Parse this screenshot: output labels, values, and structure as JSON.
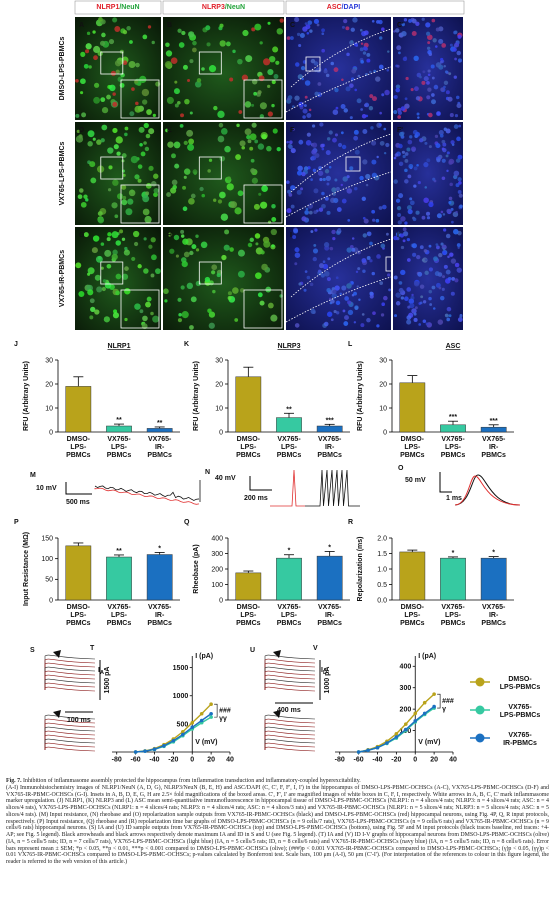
{
  "figure": {
    "columns": [
      [
        "NLRP1",
        "/NeuN"
      ],
      [
        "NLRP3",
        "/NeuN"
      ],
      [
        "ASC",
        "/DAPI"
      ]
    ],
    "rows": [
      "DMSO-LPS-PBMCs",
      "VX765-LPS-PBMCs",
      "VX765-IR-PBMCs"
    ],
    "panel_labels": [
      [
        "A",
        "B",
        "C",
        "C'"
      ],
      [
        "D",
        "E",
        "F",
        "F'"
      ],
      [
        "G",
        "H",
        "I",
        "I'"
      ]
    ]
  },
  "chart_data": [
    {
      "type": "bar",
      "panel": "J",
      "title": "NLRP1",
      "ylabel": "RFU (Arbitrary Units)",
      "categories": [
        "DMSO-LPS-PBMCs",
        "VX765-LPS-PBMCs",
        "VX765-IR-PBMCs"
      ],
      "values": [
        19,
        2.5,
        1.5
      ],
      "errors": [
        4,
        0.8,
        0.6
      ],
      "annotations": [
        null,
        "**",
        "**"
      ],
      "colors": [
        "#b9a31b",
        "#36c9a1",
        "#1b70c1"
      ],
      "ylim": [
        0,
        30
      ],
      "yticks": [
        0,
        10,
        20,
        30
      ]
    },
    {
      "type": "bar",
      "panel": "K",
      "title": "NLRP3",
      "ylabel": "RFU (Arbitrary Units)",
      "categories": [
        "DMSO-LPS-PBMCs",
        "VX765-LPS-PBMCs",
        "VX765-IR-PBMCs"
      ],
      "values": [
        23,
        6,
        2.5
      ],
      "errors": [
        4,
        1.8,
        0.7
      ],
      "annotations": [
        null,
        "**",
        "***"
      ],
      "colors": [
        "#b9a31b",
        "#36c9a1",
        "#1b70c1"
      ],
      "ylim": [
        0,
        30
      ],
      "yticks": [
        0,
        10,
        20,
        30
      ]
    },
    {
      "type": "bar",
      "panel": "L",
      "title": "ASC",
      "ylabel": "RFU (Arbitrary Units)",
      "categories": [
        "DMSO-LPS-PBMCs",
        "VX765-LPS-PBMCs",
        "VX765-IR-PBMCs"
      ],
      "values": [
        20.5,
        3,
        2
      ],
      "errors": [
        3,
        1.5,
        1
      ],
      "annotations": [
        null,
        "***",
        "***"
      ],
      "colors": [
        "#b9a31b",
        "#36c9a1",
        "#1b70c1"
      ],
      "ylim": [
        0,
        30
      ],
      "yticks": [
        0,
        10,
        20,
        30
      ]
    },
    {
      "type": "bar",
      "panel": "P",
      "ylabel": "Input Resistance (MΩ)",
      "categories": [
        "DMSO-LPS-PBMCs",
        "VX765-LPS-PBMCs",
        "VX765-IR-PBMCs"
      ],
      "values": [
        131,
        104,
        110
      ],
      "errors": [
        7,
        5,
        5
      ],
      "annotations": [
        null,
        "**",
        "*"
      ],
      "colors": [
        "#b9a31b",
        "#36c9a1",
        "#1b70c1"
      ],
      "ylim": [
        0,
        150
      ],
      "yticks": [
        0,
        50,
        100,
        150
      ]
    },
    {
      "type": "bar",
      "panel": "Q",
      "ylabel": "Rheobase (pA)",
      "categories": [
        "DMSO-LPS-PBMCs",
        "VX765-LPS-PBMCs",
        "VX765-IR-PBMCs"
      ],
      "values": [
        175,
        270,
        283
      ],
      "errors": [
        12,
        22,
        30
      ],
      "annotations": [
        null,
        "*",
        "*"
      ],
      "colors": [
        "#b9a31b",
        "#36c9a1",
        "#1b70c1"
      ],
      "ylim": [
        0,
        400
      ],
      "yticks": [
        0,
        100,
        200,
        300,
        400
      ]
    },
    {
      "type": "bar",
      "panel": "R",
      "ylabel": "Repolarization (ms)",
      "categories": [
        "DMSO-LPS-PBMCs",
        "VX765-LPS-PBMCs",
        "VX765-IR-PBMCs"
      ],
      "values": [
        1.55,
        1.35,
        1.35
      ],
      "errors": [
        0.06,
        0.04,
        0.05
      ],
      "annotations": [
        null,
        "*",
        "*"
      ],
      "colors": [
        "#b9a31b",
        "#36c9a1",
        "#1b70c1"
      ],
      "ylim": [
        0,
        2
      ],
      "yticks": [
        {
          "value": 0,
          "label": "0.0"
        },
        {
          "value": 0.5,
          "label": "0.5"
        },
        {
          "value": 1,
          "label": "1.0"
        },
        {
          "value": 1.5,
          "label": "1.5"
        },
        {
          "value": 2,
          "label": "2.0"
        }
      ]
    },
    {
      "type": "line",
      "panel": "T",
      "current": [
        "I",
        "A"
      ],
      "xlabel": "V (mV)",
      "ylabel": "I (pA)",
      "x": [
        -60,
        -50,
        -40,
        -30,
        -20,
        -10,
        0,
        10,
        20
      ],
      "series": [
        {
          "name": "DMSO-LPS-PBMCs",
          "color": "#b9a31b",
          "values": [
            0,
            20,
            60,
            130,
            230,
            360,
            520,
            680,
            850
          ]
        },
        {
          "name": "VX765-LPS-PBMCs",
          "color": "#36c9a1",
          "values": [
            0,
            15,
            45,
            100,
            180,
            290,
            410,
            520,
            620
          ]
        },
        {
          "name": "VX765-IR-PBMCs",
          "color": "#1b70c1",
          "values": [
            0,
            15,
            50,
            110,
            200,
            310,
            440,
            560,
            680
          ]
        }
      ],
      "annotations": [
        "###",
        "γγ"
      ],
      "xlim": [
        -85,
        40
      ],
      "xticks": [
        -80,
        -60,
        -40,
        -20,
        0,
        20,
        40
      ],
      "ylim": [
        0,
        1600
      ],
      "yticks": [
        500,
        1000,
        1500
      ]
    },
    {
      "type": "line",
      "panel": "V",
      "current": [
        "I",
        "D"
      ],
      "xlabel": "V (mV)",
      "ylabel": "I (pA)",
      "x": [
        -60,
        -50,
        -40,
        -30,
        -20,
        -10,
        0,
        10,
        20
      ],
      "series": [
        {
          "color": "#b9a31b",
          "values": [
            0,
            10,
            25,
            50,
            85,
            130,
            180,
            230,
            270
          ]
        },
        {
          "color": "#36c9a1",
          "values": [
            0,
            8,
            20,
            40,
            65,
            100,
            140,
            175,
            205
          ]
        },
        {
          "color": "#1b70c1",
          "values": [
            0,
            8,
            20,
            42,
            70,
            105,
            145,
            180,
            212
          ]
        }
      ],
      "annotations": [
        "###",
        "γ"
      ],
      "xlim": [
        -85,
        40
      ],
      "xticks": [
        -80,
        -60,
        -40,
        -20,
        0,
        20,
        40
      ],
      "ylim": [
        0,
        420
      ],
      "yticks": [
        100,
        200,
        300,
        400
      ]
    }
  ],
  "traces": [
    {
      "panel": "M",
      "labels": [
        "10 mV",
        "500 ms"
      ]
    },
    {
      "panel": "N",
      "labels": [
        "40 mV",
        "200 ms"
      ]
    },
    {
      "panel": "O",
      "labels": [
        "50 mV",
        "1 ms"
      ]
    },
    {
      "panel": "S",
      "labels": [
        "1500 pA",
        "100 ms"
      ]
    },
    {
      "panel": "U",
      "labels": [
        "1000 pA",
        "400 ms"
      ]
    }
  ],
  "caption": {
    "title": "Fig. 7.",
    "heading": "Inhibition of inflammasome assembly protected the hippocampus from inflammation transduction and inflammatory-coupled hyperexcitability.",
    "body": "(A-I) Immunohistochemistry images of NLRP1/NeuN (A, D, G), NLRP3/NeuN (B, E, H) and ASC/DAPI (C, C', F, F', I, I') in the hippocampus of DMSO-LPS-PBMC-OCHSCs (A-C), VX765-LPS-PBMC-OCHSCs (D-F) and VX765-IR-PBMC-OCHSCs (G-I). Insets in A, B, D, E, G, H are 2.5× fold magnifications of the boxed areas. C', F', I' are magnified images of white boxes in C, F, I, respectively. White arrows in A, B, C, C' mark inflammasome marker upregulation. (J) NLRP1, (K) NLRP3 and (L) ASC mean semi-quantitative immunofluorescence in hippocampal tissue of DMSO-LPS-PBMC-OCHSCs (NLRP1: n = 4 slices/4 rats; NLRP3: n = 4 slices/4 rats; ASC: n = 4 slices/4 rats), VX765-LPS-PBMC-OCHSCs (NLRP1: n = 4 slices/4 rats; NLRP3: n = 4 slices/4 rats; ASC: n = 4 slices/3 rats) and VX765-IR-PBMC-OCHSCs (NLRP1: n = 5 slices/4 rats; NLRP3: n = 5 slices/4 rats; ASC: n = 5 slices/4 rats). (M) Input resistance, (N) rheobase and (O) repolarization sample outputs from VX765-IR-PBMC-OCHSCs (black) and DMSO-LPS-PBMC-OCHSCs (red) hippocampal neurons, using Fig. 4P, Q, R input protocols, respectively. (P) Input resistance, (Q) rheobase and (R) repolarization time bar graphs of DMSO-LPS-PBMC-OCHSCs (n = 9 cells/7 rats), VX765-LPS-PBMC-OCHSCs (n = 9 cells/6 rats) and VX765-IR-PBMC-OCHSCs (n = 9 cells/6 rats) hippocampal neurons. (S) IA and (U) ID sample outputs from VX765-IR-PBMC-OCHSCs (top) and DMSO-LPS-PBMC-OCHSCs (bottom), using Fig. 5F and M input protocols (black traces baseline, red traces: +4-AP; see Fig. 5 legend). Black arrowheads and black arrows respectively denote maximum IA and ID in S and U (see Fig. 5 legend). (T) IA and (V) ID I-V graphs of hippocampal neurons from DMSO-LPS-PBMC-OCHSCs (olive) (IA, n = 5 cells/5 rats; ID, n = 7 cells/7 rats), VX765-LPS-PBMC-OCHSCs (light blue) (IA, n = 5 cells/5 rats; ID, n = 8 cells/6 rats) and VX765-IR-PBMC-OCHSCs (navy blue) (IA, n = 5 cells/5 rats; ID, n = 8 cells/6 rats). Error bars represent mean ± SEM; *p < 0.05, **p < 0.01, ***p < 0.001 compared to DMSO-LPS-PBMC-OCHSCs (olive); (###)p < 0.001 VX765-IR-PBMC-OCHSCs compared to DMSO-LPS-PBMC-OCHSCs; (γ)p < 0.05, (γγ)p < 0.01 VX765-IR-PBMC-OCHSCs compared to DMSO-LPS-PBMC-OCHSCs; p-values calculated by Bonferroni test. Scale bars, 100 μm (A-I), 50 μm (C'-I'). (For interpretation of the references to colour in this figure legend, the reader is referred to the web version of this article.)"
  }
}
